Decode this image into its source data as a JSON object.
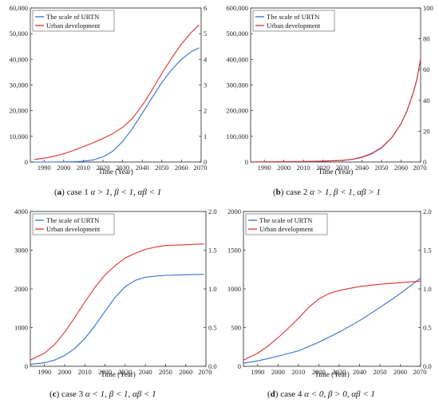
{
  "colors": {
    "scale": "#2f6fcf",
    "urban": "#e0312c"
  },
  "chart_data": [
    {
      "type": "line",
      "panel": "(a)",
      "caption_id": "case 1",
      "caption_math": "α > 1, β < 1, αβ < 1",
      "xlabel": "Time (Year)",
      "xlim": [
        1983,
        2070
      ],
      "xticks": [
        1990,
        2000,
        2010,
        2020,
        2030,
        2040,
        2050,
        2060,
        2070
      ],
      "ylim": [
        0,
        60000
      ],
      "yticks": [
        "0",
        "10,000",
        "20,000",
        "30,000",
        "40,000",
        "50,000",
        "60,000"
      ],
      "y2lim": [
        0,
        6
      ],
      "y2ticks": [
        "0",
        "1",
        "2",
        "3",
        "4",
        "5",
        "6"
      ],
      "legend_position": "top-left",
      "series": [
        {
          "name": "The scale of URTN",
          "axis": "left",
          "x": [
            1985,
            1995,
            2005,
            2010,
            2015,
            2020,
            2025,
            2030,
            2035,
            2040,
            2045,
            2050,
            2055,
            2060,
            2065,
            2069
          ],
          "y": [
            0,
            0,
            100,
            300,
            800,
            2000,
            4200,
            8000,
            13000,
            19000,
            25000,
            31000,
            36000,
            40000,
            43000,
            44500
          ]
        },
        {
          "name": "Urban development",
          "axis": "right",
          "x": [
            1985,
            1990,
            1995,
            2000,
            2005,
            2010,
            2015,
            2020,
            2025,
            2030,
            2035,
            2040,
            2045,
            2050,
            2055,
            2060,
            2065,
            2069
          ],
          "y": [
            0.1,
            0.15,
            0.22,
            0.32,
            0.45,
            0.6,
            0.75,
            0.92,
            1.1,
            1.35,
            1.7,
            2.2,
            2.8,
            3.45,
            4.05,
            4.6,
            5.05,
            5.35
          ]
        }
      ]
    },
    {
      "type": "line",
      "panel": "(b)",
      "caption_id": "case 2",
      "caption_math": "α > 1, β < 1, αβ > 1",
      "xlabel": "Time (Year)",
      "xlim": [
        1983,
        2070
      ],
      "xticks": [
        1990,
        2000,
        2010,
        2020,
        2030,
        2040,
        2050,
        2060,
        2070
      ],
      "ylim": [
        0,
        600000
      ],
      "yticks": [
        "0",
        "100,000",
        "200,000",
        "300,000",
        "400,000",
        "500,000",
        "600,000"
      ],
      "y2lim": [
        0,
        100
      ],
      "y2ticks": [
        "0",
        "20",
        "40",
        "60",
        "80",
        "100"
      ],
      "legend_position": "top-left",
      "series": [
        {
          "name": "The scale of URTN",
          "axis": "left",
          "x": [
            1985,
            2000,
            2010,
            2020,
            2030,
            2035,
            2040,
            2045,
            2050,
            2055,
            2060,
            2063,
            2066,
            2068,
            2070
          ],
          "y": [
            0,
            500,
            1500,
            3000,
            6000,
            10000,
            18000,
            32000,
            55000,
            92000,
            150000,
            200000,
            265000,
            320000,
            400000
          ]
        },
        {
          "name": "Urban development",
          "axis": "right",
          "x": [
            1985,
            2000,
            2010,
            2020,
            2030,
            2035,
            2040,
            2045,
            2050,
            2055,
            2060,
            2063,
            2066,
            2068,
            2070
          ],
          "y": [
            0.1,
            0.2,
            0.35,
            0.6,
            1.1,
            1.8,
            3.2,
            5.6,
            9.5,
            15.5,
            25,
            33,
            44,
            53,
            67
          ]
        }
      ]
    },
    {
      "type": "line",
      "panel": "(c)",
      "caption_id": "case 3",
      "caption_math": "α < 1, β < 1, αβ < 1",
      "xlabel": "Time (Year)",
      "xlim": [
        1983,
        2070
      ],
      "xticks": [
        1990,
        2000,
        2010,
        2020,
        2030,
        2040,
        2050,
        2060,
        2070
      ],
      "ylim": [
        0,
        4000
      ],
      "yticks": [
        "0",
        "1000",
        "2000",
        "3000",
        "4000"
      ],
      "y2lim": [
        0,
        2.0
      ],
      "y2ticks": [
        "0.0",
        "0.5",
        "1.0",
        "1.5",
        "2.0"
      ],
      "legend_position": "top-left",
      "series": [
        {
          "name": "The scale of URTN",
          "axis": "left",
          "x": [
            1983,
            1990,
            1995,
            2000,
            2005,
            2010,
            2015,
            2020,
            2025,
            2030,
            2035,
            2040,
            2045,
            2050,
            2060,
            2069
          ],
          "y": [
            50,
            90,
            160,
            280,
            460,
            720,
            1050,
            1420,
            1780,
            2060,
            2220,
            2300,
            2330,
            2350,
            2365,
            2375
          ]
        },
        {
          "name": "Urban development",
          "axis": "right",
          "x": [
            1983,
            1990,
            1995,
            2000,
            2005,
            2010,
            2015,
            2020,
            2025,
            2030,
            2035,
            2040,
            2045,
            2050,
            2060,
            2069
          ],
          "y": [
            0.08,
            0.17,
            0.28,
            0.44,
            0.63,
            0.83,
            1.02,
            1.18,
            1.3,
            1.4,
            1.46,
            1.51,
            1.54,
            1.56,
            1.57,
            1.58
          ]
        }
      ]
    },
    {
      "type": "line",
      "panel": "(d)",
      "caption_id": "case 4",
      "caption_math": "α < 0, β > 0, αβ < 1",
      "xlabel": "Time (Year)",
      "xlim": [
        1983,
        2070
      ],
      "xticks": [
        1990,
        2000,
        2010,
        2020,
        2030,
        2040,
        2050,
        2060,
        2070
      ],
      "ylim": [
        0,
        2000
      ],
      "yticks": [
        "0",
        "500",
        "1000",
        "1500",
        "2000"
      ],
      "y2lim": [
        0,
        2.0
      ],
      "y2ticks": [
        "0.0",
        "0.5",
        "1.0",
        "1.5",
        "2.0"
      ],
      "legend_position": "top-left",
      "series": [
        {
          "name": "The scale of URTN",
          "axis": "left",
          "x": [
            1983,
            1990,
            2000,
            2010,
            2020,
            2030,
            2040,
            2050,
            2060,
            2070
          ],
          "y": [
            40,
            70,
            130,
            200,
            310,
            440,
            590,
            760,
            940,
            1140
          ]
        },
        {
          "name": "Urban development",
          "axis": "right",
          "x": [
            1983,
            1990,
            1995,
            2000,
            2005,
            2010,
            2015,
            2020,
            2025,
            2030,
            2040,
            2050,
            2060,
            2070
          ],
          "y": [
            0.08,
            0.17,
            0.26,
            0.37,
            0.49,
            0.62,
            0.76,
            0.87,
            0.94,
            0.98,
            1.03,
            1.06,
            1.08,
            1.1
          ]
        }
      ]
    }
  ]
}
